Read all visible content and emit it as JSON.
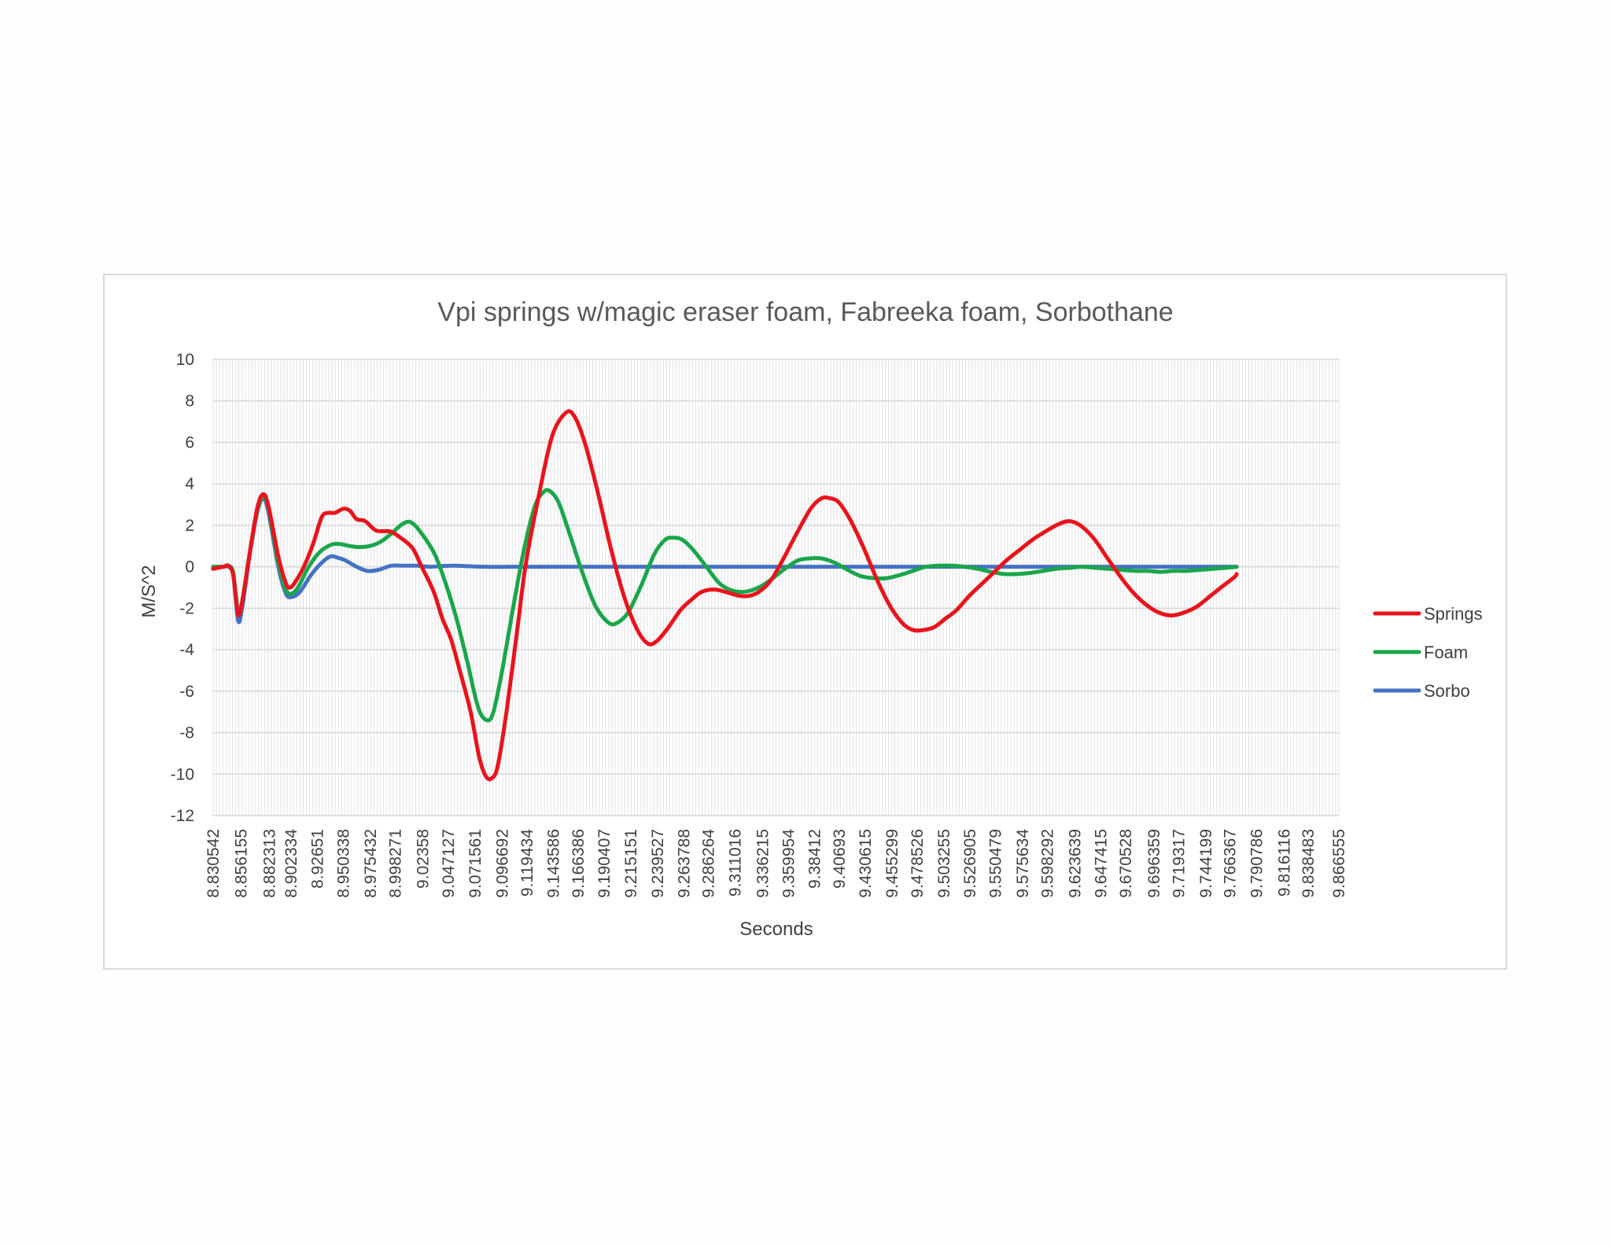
{
  "chart_data": {
    "type": "line",
    "title": "Vpi springs w/magic eraser foam, Fabreeka foam, Sorbothane",
    "xlabel": "Seconds",
    "ylabel": "M/S^2",
    "ylim": [
      -12,
      10
    ],
    "yticks": [
      "10",
      "8",
      "6",
      "4",
      "2",
      "0",
      "-2",
      "-4",
      "-6",
      "-8",
      "-10",
      "-12"
    ],
    "grid": true,
    "legend_position": "right",
    "x_tick_labels": [
      "8.830542",
      "8.856155",
      "8.882313",
      "8.902334",
      "8.92651",
      "8.950338",
      "8.975432",
      "8.998271",
      "9.02358",
      "9.047127",
      "9.071561",
      "9.096692",
      "9.119434",
      "9.143586",
      "9.166386",
      "9.190407",
      "9.215151",
      "9.239527",
      "9.263788",
      "9.286264",
      "9.311016",
      "9.336215",
      "9.359954",
      "9.38412",
      "9.40693",
      "9.430615",
      "9.455299",
      "9.478526",
      "9.503255",
      "9.526905",
      "9.550479",
      "9.575634",
      "9.598292",
      "9.623639",
      "9.647415",
      "9.670528",
      "9.696359",
      "9.719317",
      "9.744199",
      "9.766367",
      "9.790786",
      "9.816116",
      "9.838483",
      "9.866555"
    ],
    "series": [
      {
        "name": "Springs",
        "color": "#e8141c",
        "points": [
          [
            8.8305,
            -0.1
          ],
          [
            8.84,
            0.0
          ],
          [
            8.8445,
            0.05
          ],
          [
            8.849,
            -0.4
          ],
          [
            8.8535,
            -2.3
          ],
          [
            8.8575,
            -1.6
          ],
          [
            8.864,
            0.6
          ],
          [
            8.871,
            2.8
          ],
          [
            8.8765,
            3.5
          ],
          [
            8.8815,
            2.9
          ],
          [
            8.8905,
            0.5
          ],
          [
            8.8975,
            -0.8
          ],
          [
            8.9015,
            -1.0
          ],
          [
            8.9065,
            -0.7
          ],
          [
            8.914,
            0.0
          ],
          [
            8.9225,
            1.1
          ],
          [
            8.9305,
            2.4
          ],
          [
            8.9365,
            2.6
          ],
          [
            8.9425,
            2.6
          ],
          [
            8.9505,
            2.8
          ],
          [
            8.9565,
            2.7
          ],
          [
            8.9625,
            2.3
          ],
          [
            8.9705,
            2.2
          ],
          [
            8.9805,
            1.75
          ],
          [
            8.9935,
            1.7
          ],
          [
            9.003,
            1.4
          ],
          [
            9.014,
            0.9
          ],
          [
            9.0225,
            0.0
          ],
          [
            9.0335,
            -1.2
          ],
          [
            9.0415,
            -2.5
          ],
          [
            9.0495,
            -3.5
          ],
          [
            9.0575,
            -5.0
          ],
          [
            9.0675,
            -7.0
          ],
          [
            9.0755,
            -9.2
          ],
          [
            9.0815,
            -10.1
          ],
          [
            9.087,
            -10.2
          ],
          [
            9.0925,
            -9.6
          ],
          [
            9.1005,
            -7.0
          ],
          [
            9.1105,
            -3.0
          ],
          [
            9.1185,
            0.2
          ],
          [
            9.1305,
            3.5
          ],
          [
            9.1425,
            6.3
          ],
          [
            9.1545,
            7.4
          ],
          [
            9.1625,
            7.3
          ],
          [
            9.1725,
            6.0
          ],
          [
            9.1845,
            3.6
          ],
          [
            9.1965,
            0.9
          ],
          [
            9.2085,
            -1.4
          ],
          [
            9.2205,
            -3.0
          ],
          [
            9.2305,
            -3.7
          ],
          [
            9.2385,
            -3.6
          ],
          [
            9.2485,
            -3.0
          ],
          [
            9.2605,
            -2.1
          ],
          [
            9.2705,
            -1.6
          ],
          [
            9.2805,
            -1.2
          ],
          [
            9.2925,
            -1.1
          ],
          [
            9.3045,
            -1.25
          ],
          [
            9.3145,
            -1.4
          ],
          [
            9.3245,
            -1.4
          ],
          [
            9.3345,
            -1.15
          ],
          [
            9.3445,
            -0.6
          ],
          [
            9.3565,
            0.5
          ],
          [
            9.3685,
            1.7
          ],
          [
            9.3805,
            2.8
          ],
          [
            9.3905,
            3.3
          ],
          [
            9.3985,
            3.3
          ],
          [
            9.4065,
            3.1
          ],
          [
            9.4165,
            2.3
          ],
          [
            9.4285,
            1.0
          ],
          [
            9.4405,
            -0.5
          ],
          [
            9.4525,
            -1.8
          ],
          [
            9.4645,
            -2.7
          ],
          [
            9.4745,
            -3.05
          ],
          [
            9.4845,
            -3.05
          ],
          [
            9.4945,
            -2.9
          ],
          [
            9.5045,
            -2.5
          ],
          [
            9.5145,
            -2.1
          ],
          [
            9.5265,
            -1.4
          ],
          [
            9.5385,
            -0.8
          ],
          [
            9.5505,
            -0.2
          ],
          [
            9.5605,
            0.3
          ],
          [
            9.5725,
            0.8
          ],
          [
            9.5845,
            1.3
          ],
          [
            9.5965,
            1.7
          ],
          [
            9.6085,
            2.05
          ],
          [
            9.6185,
            2.2
          ],
          [
            9.6285,
            2.0
          ],
          [
            9.6405,
            1.4
          ],
          [
            9.6525,
            0.5
          ],
          [
            9.6645,
            -0.4
          ],
          [
            9.6765,
            -1.2
          ],
          [
            9.6885,
            -1.8
          ],
          [
            9.7005,
            -2.2
          ],
          [
            9.7125,
            -2.35
          ],
          [
            9.7245,
            -2.2
          ],
          [
            9.7365,
            -1.9
          ],
          [
            9.7485,
            -1.4
          ],
          [
            9.7605,
            -0.9
          ],
          [
            9.7705,
            -0.5
          ],
          [
            9.7725,
            -0.35
          ]
        ]
      },
      {
        "name": "Foam",
        "color": "#1aa64b",
        "points": [
          [
            8.8305,
            0.0
          ],
          [
            8.84,
            0.0
          ],
          [
            8.8445,
            0.05
          ],
          [
            8.849,
            -0.3
          ],
          [
            8.8535,
            -2.2
          ],
          [
            8.8575,
            -1.6
          ],
          [
            8.864,
            0.6
          ],
          [
            8.871,
            2.7
          ],
          [
            8.8765,
            3.4
          ],
          [
            8.8815,
            2.8
          ],
          [
            8.8905,
            0.2
          ],
          [
            8.8975,
            -1.1
          ],
          [
            8.9025,
            -1.3
          ],
          [
            8.9085,
            -1.0
          ],
          [
            8.9185,
            0.0
          ],
          [
            8.9285,
            0.7
          ],
          [
            8.9385,
            1.05
          ],
          [
            8.9465,
            1.1
          ],
          [
            8.9565,
            1.0
          ],
          [
            8.9645,
            0.95
          ],
          [
            8.9745,
            1.0
          ],
          [
            8.9845,
            1.2
          ],
          [
            8.9945,
            1.6
          ],
          [
            9.0045,
            2.05
          ],
          [
            9.0125,
            2.15
          ],
          [
            9.0225,
            1.6
          ],
          [
            9.0345,
            0.6
          ],
          [
            9.0445,
            -0.8
          ],
          [
            9.0545,
            -2.5
          ],
          [
            9.0645,
            -4.6
          ],
          [
            9.0745,
            -6.8
          ],
          [
            9.0825,
            -7.4
          ],
          [
            9.0885,
            -7.0
          ],
          [
            9.0965,
            -5.0
          ],
          [
            9.1065,
            -2.0
          ],
          [
            9.1165,
            0.8
          ],
          [
            9.1265,
            2.9
          ],
          [
            9.1345,
            3.6
          ],
          [
            9.1405,
            3.65
          ],
          [
            9.1485,
            3.1
          ],
          [
            9.1585,
            1.6
          ],
          [
            9.1705,
            -0.3
          ],
          [
            9.1825,
            -1.9
          ],
          [
            9.1945,
            -2.7
          ],
          [
            9.2025,
            -2.7
          ],
          [
            9.2125,
            -2.2
          ],
          [
            9.2245,
            -0.9
          ],
          [
            9.2365,
            0.6
          ],
          [
            9.2465,
            1.3
          ],
          [
            9.2545,
            1.4
          ],
          [
            9.2625,
            1.3
          ],
          [
            9.2725,
            0.8
          ],
          [
            9.2845,
            0.0
          ],
          [
            9.2965,
            -0.8
          ],
          [
            9.3085,
            -1.15
          ],
          [
            9.3205,
            -1.2
          ],
          [
            9.3325,
            -1.0
          ],
          [
            9.3445,
            -0.6
          ],
          [
            9.3565,
            -0.1
          ],
          [
            9.3685,
            0.3
          ],
          [
            9.3785,
            0.4
          ],
          [
            9.3905,
            0.4
          ],
          [
            9.4025,
            0.2
          ],
          [
            9.4145,
            -0.15
          ],
          [
            9.4265,
            -0.45
          ],
          [
            9.4385,
            -0.55
          ],
          [
            9.4505,
            -0.55
          ],
          [
            9.4625,
            -0.4
          ],
          [
            9.4745,
            -0.2
          ],
          [
            9.4865,
            0.0
          ],
          [
            9.4985,
            0.05
          ],
          [
            9.5105,
            0.05
          ],
          [
            9.5225,
            0.0
          ],
          [
            9.5345,
            -0.1
          ],
          [
            9.5465,
            -0.25
          ],
          [
            9.5585,
            -0.35
          ],
          [
            9.5705,
            -0.35
          ],
          [
            9.5825,
            -0.3
          ],
          [
            9.5945,
            -0.2
          ],
          [
            9.6065,
            -0.1
          ],
          [
            9.6185,
            -0.05
          ],
          [
            9.6305,
            0.0
          ],
          [
            9.6425,
            -0.05
          ],
          [
            9.6545,
            -0.1
          ],
          [
            9.6665,
            -0.15
          ],
          [
            9.6785,
            -0.2
          ],
          [
            9.6905,
            -0.2
          ],
          [
            9.7025,
            -0.25
          ],
          [
            9.7145,
            -0.2
          ],
          [
            9.7265,
            -0.2
          ],
          [
            9.7385,
            -0.15
          ],
          [
            9.7505,
            -0.1
          ],
          [
            9.7625,
            -0.05
          ],
          [
            9.7725,
            0.0
          ]
        ]
      },
      {
        "name": "Sorbo",
        "color": "#4472c4",
        "points": [
          [
            8.8305,
            0.0
          ],
          [
            8.84,
            0.0
          ],
          [
            8.8445,
            0.0
          ],
          [
            8.849,
            -0.4
          ],
          [
            8.8535,
            -2.6
          ],
          [
            8.8575,
            -1.9
          ],
          [
            8.864,
            0.5
          ],
          [
            8.871,
            2.6
          ],
          [
            8.8765,
            3.3
          ],
          [
            8.8815,
            2.6
          ],
          [
            8.8905,
            0.0
          ],
          [
            8.8975,
            -1.3
          ],
          [
            8.9035,
            -1.45
          ],
          [
            8.9105,
            -1.2
          ],
          [
            8.9205,
            -0.4
          ],
          [
            8.9305,
            0.2
          ],
          [
            8.9385,
            0.5
          ],
          [
            8.9445,
            0.45
          ],
          [
            8.9525,
            0.3
          ],
          [
            8.9625,
            0.0
          ],
          [
            8.9725,
            -0.2
          ],
          [
            8.9825,
            -0.15
          ],
          [
            8.9945,
            0.05
          ],
          [
            9.0065,
            0.05
          ],
          [
            9.0185,
            0.05
          ],
          [
            9.0305,
            0.0
          ],
          [
            9.0505,
            0.05
          ],
          [
            9.0805,
            0.0
          ],
          [
            9.1205,
            0.0
          ],
          [
            9.1605,
            0.0
          ],
          [
            9.2005,
            0.0
          ],
          [
            9.2405,
            0.0
          ],
          [
            9.2805,
            0.0
          ],
          [
            9.3205,
            0.0
          ],
          [
            9.3605,
            0.0
          ],
          [
            9.4005,
            0.0
          ],
          [
            9.4405,
            0.0
          ],
          [
            9.4805,
            0.0
          ],
          [
            9.5205,
            0.0
          ],
          [
            9.5605,
            0.0
          ],
          [
            9.6005,
            0.0
          ],
          [
            9.6405,
            0.0
          ],
          [
            9.6805,
            0.0
          ],
          [
            9.7205,
            0.0
          ],
          [
            9.7605,
            0.0
          ],
          [
            9.7725,
            0.0
          ]
        ]
      }
    ]
  }
}
